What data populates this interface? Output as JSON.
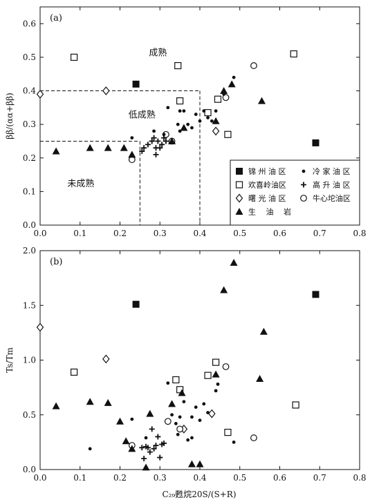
{
  "figure": {
    "xlabel": "C₂₉甦烷20S/(S+R)"
  },
  "chart_data": [
    {
      "type": "scatter",
      "panel_label": "(a)",
      "ylabel": "ββ/(αα+ββ)",
      "xlim": [
        0,
        0.8
      ],
      "ylim": [
        0,
        0.65
      ],
      "xticks": [
        0.0,
        0.1,
        0.2,
        0.3,
        0.4,
        0.5,
        0.6,
        0.7,
        0.8
      ],
      "yticks": [
        0.0,
        0.1,
        0.2,
        0.3,
        0.4,
        0.5,
        0.6
      ],
      "xtick_labels": [
        "0.0",
        "0.1",
        "0.2",
        "0.3",
        "0.4",
        "0.5",
        "0.6",
        "0.7",
        "0.8"
      ],
      "ytick_labels": [
        "0.0",
        "0.1",
        "0.2",
        "0.3",
        "0.4",
        "0.5",
        "0.6"
      ],
      "region_labels": [
        {
          "text": "成熟",
          "x": 0.295,
          "y": 0.515
        },
        {
          "text": "低成熟",
          "x": 0.255,
          "y": 0.33
        },
        {
          "text": "未成熟",
          "x": 0.102,
          "y": 0.125
        }
      ],
      "guides": [
        {
          "x": [
            0.0,
            0.4
          ],
          "y": [
            0.4,
            0.4
          ]
        },
        {
          "x": [
            0.4,
            0.4
          ],
          "y": [
            0.4,
            0.0
          ]
        },
        {
          "x": [
            0.0,
            0.25
          ],
          "y": [
            0.25,
            0.25
          ]
        },
        {
          "x": [
            0.25,
            0.25
          ],
          "y": [
            0.25,
            0.0
          ]
        }
      ],
      "legend": {
        "placement": "lower-right",
        "entries": [
          {
            "series": "jinzhou",
            "label": "锦 州 油 区"
          },
          {
            "series": "lengjia",
            "label": "冷 家 油 区"
          },
          {
            "series": "huanxiling",
            "label": "欢喜岭油区"
          },
          {
            "series": "gaosheng",
            "label": "高 升 油 区"
          },
          {
            "series": "shuguang",
            "label": "曙 光 油 区"
          },
          {
            "series": "niuxintuo",
            "label": "牛心坨油区"
          },
          {
            "series": "source_rock",
            "label": "生 　油 　岩"
          }
        ]
      },
      "series": [
        {
          "id": "jinzhou",
          "marker": "filled-square",
          "points": [
            [
              0.24,
              0.42
            ],
            [
              0.69,
              0.245
            ]
          ]
        },
        {
          "id": "huanxiling",
          "marker": "open-square",
          "points": [
            [
              0.085,
              0.5
            ],
            [
              0.345,
              0.475
            ],
            [
              0.635,
              0.51
            ],
            [
              0.35,
              0.37
            ],
            [
              0.445,
              0.375
            ],
            [
              0.42,
              0.335
            ],
            [
              0.47,
              0.27
            ]
          ]
        },
        {
          "id": "shuguang",
          "marker": "open-diamond",
          "points": [
            [
              0.0,
              0.39
            ],
            [
              0.165,
              0.4
            ],
            [
              0.44,
              0.28
            ]
          ]
        },
        {
          "id": "niuxintuo",
          "marker": "open-circle",
          "points": [
            [
              0.23,
              0.195
            ],
            [
              0.535,
              0.475
            ],
            [
              0.465,
              0.38
            ],
            [
              0.315,
              0.27
            ],
            [
              0.33,
              0.25
            ]
          ]
        },
        {
          "id": "lengjia",
          "marker": "filled-circle",
          "points": [
            [
              0.23,
              0.26
            ],
            [
              0.285,
              0.28
            ],
            [
              0.32,
              0.35
            ],
            [
              0.345,
              0.3
            ],
            [
              0.35,
              0.34
            ],
            [
              0.36,
              0.34
            ],
            [
              0.37,
              0.3
            ],
            [
              0.38,
              0.29
            ],
            [
              0.39,
              0.33
            ],
            [
              0.4,
              0.31
            ],
            [
              0.41,
              0.34
            ],
            [
              0.42,
              0.32
            ],
            [
              0.43,
              0.31
            ],
            [
              0.44,
              0.34
            ],
            [
              0.46,
              0.39
            ],
            [
              0.485,
              0.44
            ],
            [
              0.35,
              0.28
            ],
            [
              0.31,
              0.27
            ]
          ]
        },
        {
          "id": "gaosheng",
          "marker": "plus",
          "points": [
            [
              0.255,
              0.22
            ],
            [
              0.26,
              0.23
            ],
            [
              0.27,
              0.24
            ],
            [
              0.28,
              0.25
            ],
            [
              0.285,
              0.26
            ],
            [
              0.29,
              0.23
            ],
            [
              0.295,
              0.25
            ],
            [
              0.3,
              0.23
            ],
            [
              0.305,
              0.24
            ],
            [
              0.31,
              0.26
            ],
            [
              0.315,
              0.25
            ],
            [
              0.29,
              0.21
            ]
          ]
        },
        {
          "id": "source_rock",
          "marker": "filled-triangle",
          "points": [
            [
              0.04,
              0.22
            ],
            [
              0.125,
              0.23
            ],
            [
              0.17,
              0.23
            ],
            [
              0.21,
              0.23
            ],
            [
              0.23,
              0.21
            ],
            [
              0.33,
              0.25
            ],
            [
              0.36,
              0.29
            ],
            [
              0.44,
              0.31
            ],
            [
              0.46,
              0.4
            ],
            [
              0.48,
              0.42
            ],
            [
              0.555,
              0.37
            ]
          ]
        }
      ]
    },
    {
      "type": "scatter",
      "panel_label": "(b)",
      "ylabel": "Ts/Tm",
      "xlim": [
        0,
        0.8
      ],
      "ylim": [
        0,
        2.0
      ],
      "xticks": [
        0.0,
        0.1,
        0.2,
        0.3,
        0.4,
        0.5,
        0.6,
        0.7,
        0.8
      ],
      "yticks": [
        0.0,
        0.5,
        1.0,
        1.5,
        2.0
      ],
      "xtick_labels": [
        "0.0",
        "0.1",
        "0.2",
        "0.3",
        "0.4",
        "0.5",
        "0.6",
        "0.7",
        "0.8"
      ],
      "ytick_labels": [
        "0.0",
        "0.5",
        "1.0",
        "1.5",
        "2.0"
      ],
      "series": [
        {
          "id": "jinzhou",
          "marker": "filled-square",
          "points": [
            [
              0.24,
              1.51
            ],
            [
              0.69,
              1.6
            ]
          ]
        },
        {
          "id": "huanxiling",
          "marker": "open-square",
          "points": [
            [
              0.085,
              0.89
            ],
            [
              0.34,
              0.82
            ],
            [
              0.35,
              0.73
            ],
            [
              0.42,
              0.86
            ],
            [
              0.44,
              0.98
            ],
            [
              0.47,
              0.34
            ],
            [
              0.64,
              0.59
            ]
          ]
        },
        {
          "id": "shuguang",
          "marker": "open-diamond",
          "points": [
            [
              0.0,
              1.3
            ],
            [
              0.165,
              1.01
            ],
            [
              0.43,
              0.51
            ],
            [
              0.36,
              0.37
            ]
          ]
        },
        {
          "id": "niuxintuo",
          "marker": "open-circle",
          "points": [
            [
              0.23,
              0.22
            ],
            [
              0.32,
              0.44
            ],
            [
              0.35,
              0.37
            ],
            [
              0.465,
              0.94
            ],
            [
              0.535,
              0.29
            ]
          ]
        },
        {
          "id": "lengjia",
          "marker": "filled-circle",
          "points": [
            [
              0.125,
              0.19
            ],
            [
              0.23,
              0.46
            ],
            [
              0.265,
              0.29
            ],
            [
              0.32,
              0.79
            ],
            [
              0.33,
              0.5
            ],
            [
              0.34,
              0.42
            ],
            [
              0.35,
              0.48
            ],
            [
              0.36,
              0.62
            ],
            [
              0.37,
              0.27
            ],
            [
              0.38,
              0.48
            ],
            [
              0.39,
              0.57
            ],
            [
              0.4,
              0.45
            ],
            [
              0.41,
              0.6
            ],
            [
              0.42,
              0.52
            ],
            [
              0.44,
              0.72
            ],
            [
              0.445,
              0.78
            ],
            [
              0.485,
              0.25
            ],
            [
              0.345,
              0.32
            ],
            [
              0.38,
              0.29
            ]
          ]
        },
        {
          "id": "gaosheng",
          "marker": "plus",
          "points": [
            [
              0.255,
              0.2
            ],
            [
              0.26,
              0.1
            ],
            [
              0.265,
              0.21
            ],
            [
              0.275,
              0.16
            ],
            [
              0.28,
              0.37
            ],
            [
              0.285,
              0.19
            ],
            [
              0.29,
              0.22
            ],
            [
              0.3,
              0.11
            ],
            [
              0.305,
              0.23
            ],
            [
              0.31,
              0.24
            ],
            [
              0.295,
              0.3
            ],
            [
              0.27,
              0.2
            ]
          ]
        },
        {
          "id": "source_rock",
          "marker": "filled-triangle",
          "points": [
            [
              0.04,
              0.58
            ],
            [
              0.125,
              0.62
            ],
            [
              0.17,
              0.61
            ],
            [
              0.2,
              0.44
            ],
            [
              0.215,
              0.26
            ],
            [
              0.23,
              0.19
            ],
            [
              0.265,
              0.02
            ],
            [
              0.275,
              0.51
            ],
            [
              0.33,
              0.6
            ],
            [
              0.355,
              0.7
            ],
            [
              0.38,
              0.05
            ],
            [
              0.4,
              0.05
            ],
            [
              0.44,
              0.87
            ],
            [
              0.46,
              1.64
            ],
            [
              0.485,
              1.89
            ],
            [
              0.55,
              0.83
            ],
            [
              0.56,
              1.26
            ]
          ]
        }
      ]
    }
  ]
}
